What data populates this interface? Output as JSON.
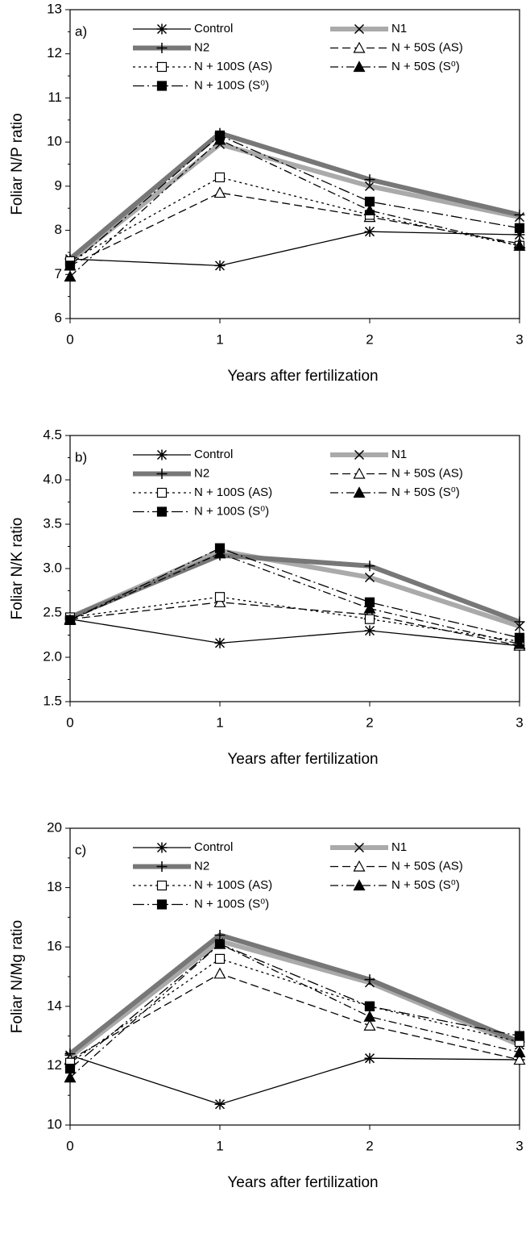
{
  "chart_data": [
    {
      "type": "line",
      "panel_label": "a)",
      "xlabel": "Years after fertilization",
      "ylabel": "Foliar N/P ratio",
      "x": [
        0,
        1,
        2,
        3
      ],
      "xlim": [
        0,
        3
      ],
      "xticks": [
        0,
        1,
        2,
        3
      ],
      "ylim": [
        6,
        13
      ],
      "yticks": [
        6,
        7,
        8,
        9,
        10,
        11,
        12,
        13
      ],
      "series": [
        {
          "name": "Control",
          "color": "#000000",
          "width": 1.3,
          "dash": "none",
          "marker": "star",
          "values": [
            7.35,
            7.2,
            7.97,
            7.9
          ]
        },
        {
          "name": "N1",
          "color": "#aaaaaa",
          "width": 6,
          "dash": "none",
          "marker": "x",
          "values": [
            7.3,
            9.95,
            9.0,
            8.3
          ]
        },
        {
          "name": "N2",
          "color": "#777777",
          "width": 6,
          "dash": "none",
          "marker": "plus",
          "values": [
            7.35,
            10.2,
            9.15,
            8.35
          ]
        },
        {
          "name": "N + 50S (AS)",
          "color": "#000000",
          "width": 1.3,
          "dash": "10 5",
          "marker": "triangle-open",
          "values": [
            7.2,
            8.85,
            8.3,
            7.7
          ]
        },
        {
          "name": "N + 100S (AS)",
          "color": "#000000",
          "width": 1.3,
          "dash": "3 4",
          "marker": "square-open",
          "values": [
            7.3,
            9.2,
            8.35,
            7.65
          ]
        },
        {
          "name": "N + 50S (S⁰)",
          "color": "#000000",
          "width": 1.3,
          "dash": "10 4 2 4",
          "marker": "triangle",
          "values": [
            6.95,
            10.05,
            8.45,
            7.65
          ]
        },
        {
          "name": "N + 100S (S⁰)",
          "color": "#000000",
          "width": 1.3,
          "dash": "14 4 2 4",
          "marker": "square",
          "values": [
            7.2,
            10.15,
            8.65,
            8.05
          ]
        }
      ]
    },
    {
      "type": "line",
      "panel_label": "b)",
      "xlabel": "Years after fertilization",
      "ylabel": "Foliar N/K ratio",
      "x": [
        0,
        1,
        2,
        3
      ],
      "xlim": [
        0,
        3
      ],
      "xticks": [
        0,
        1,
        2,
        3
      ],
      "ylim": [
        1.5,
        4.5
      ],
      "yticks": [
        1.5,
        {
          "value": 2,
          "label": "2.0"
        },
        2.5,
        {
          "value": 3,
          "label": "3.0"
        },
        3.5,
        {
          "value": 4,
          "label": "4.0"
        },
        4.5
      ],
      "series": [
        {
          "name": "Control",
          "color": "#000000",
          "width": 1.3,
          "dash": "none",
          "marker": "star",
          "values": [
            2.43,
            2.16,
            2.3,
            2.13
          ]
        },
        {
          "name": "N1",
          "color": "#aaaaaa",
          "width": 6,
          "dash": "none",
          "marker": "x",
          "values": [
            2.45,
            3.2,
            2.9,
            2.35
          ]
        },
        {
          "name": "N2",
          "color": "#777777",
          "width": 6,
          "dash": "none",
          "marker": "plus",
          "values": [
            2.45,
            3.15,
            3.03,
            2.4
          ]
        },
        {
          "name": "N + 50S (AS)",
          "color": "#000000",
          "width": 1.3,
          "dash": "10 5",
          "marker": "triangle-open",
          "values": [
            2.43,
            2.62,
            2.48,
            2.13
          ]
        },
        {
          "name": "N + 100S (AS)",
          "color": "#000000",
          "width": 1.3,
          "dash": "3 4",
          "marker": "square-open",
          "values": [
            2.45,
            2.68,
            2.43,
            2.18
          ]
        },
        {
          "name": "N + 50S (S⁰)",
          "color": "#000000",
          "width": 1.3,
          "dash": "10 4 2 4",
          "marker": "triangle",
          "values": [
            2.42,
            3.17,
            2.55,
            2.15
          ]
        },
        {
          "name": "N + 100S (S⁰)",
          "color": "#000000",
          "width": 1.3,
          "dash": "14 4 2 4",
          "marker": "square",
          "values": [
            2.42,
            3.23,
            2.62,
            2.22
          ]
        }
      ]
    },
    {
      "type": "line",
      "panel_label": "c)",
      "xlabel": "Years after fertilization",
      "ylabel": "Foliar N/Mg ratio",
      "x": [
        0,
        1,
        2,
        3
      ],
      "xlim": [
        0,
        3
      ],
      "xticks": [
        0,
        1,
        2,
        3
      ],
      "ylim": [
        10,
        20
      ],
      "yticks": [
        10,
        12,
        14,
        16,
        18,
        20
      ],
      "series": [
        {
          "name": "Control",
          "color": "#000000",
          "width": 1.3,
          "dash": "none",
          "marker": "star",
          "values": [
            12.35,
            10.7,
            12.25,
            12.2
          ]
        },
        {
          "name": "N1",
          "color": "#aaaaaa",
          "width": 6,
          "dash": "none",
          "marker": "x",
          "values": [
            12.3,
            16.2,
            14.8,
            12.7
          ]
        },
        {
          "name": "N2",
          "color": "#777777",
          "width": 6,
          "dash": "none",
          "marker": "plus",
          "values": [
            12.4,
            16.4,
            14.9,
            12.8
          ]
        },
        {
          "name": "N + 50S (AS)",
          "color": "#000000",
          "width": 1.3,
          "dash": "10 5",
          "marker": "triangle-open",
          "values": [
            12.2,
            15.1,
            13.35,
            12.2
          ]
        },
        {
          "name": "N + 100S (AS)",
          "color": "#000000",
          "width": 1.3,
          "dash": "3 4",
          "marker": "square-open",
          "values": [
            12.1,
            15.6,
            14.0,
            12.8
          ]
        },
        {
          "name": "N + 50S (S⁰)",
          "color": "#000000",
          "width": 1.3,
          "dash": "10 4 2 4",
          "marker": "triangle",
          "values": [
            11.6,
            16.1,
            13.65,
            12.45
          ]
        },
        {
          "name": "N + 100S (S⁰)",
          "color": "#000000",
          "width": 1.3,
          "dash": "14 4 2 4",
          "marker": "square",
          "values": [
            11.9,
            16.1,
            14.0,
            13.0
          ]
        }
      ]
    }
  ]
}
